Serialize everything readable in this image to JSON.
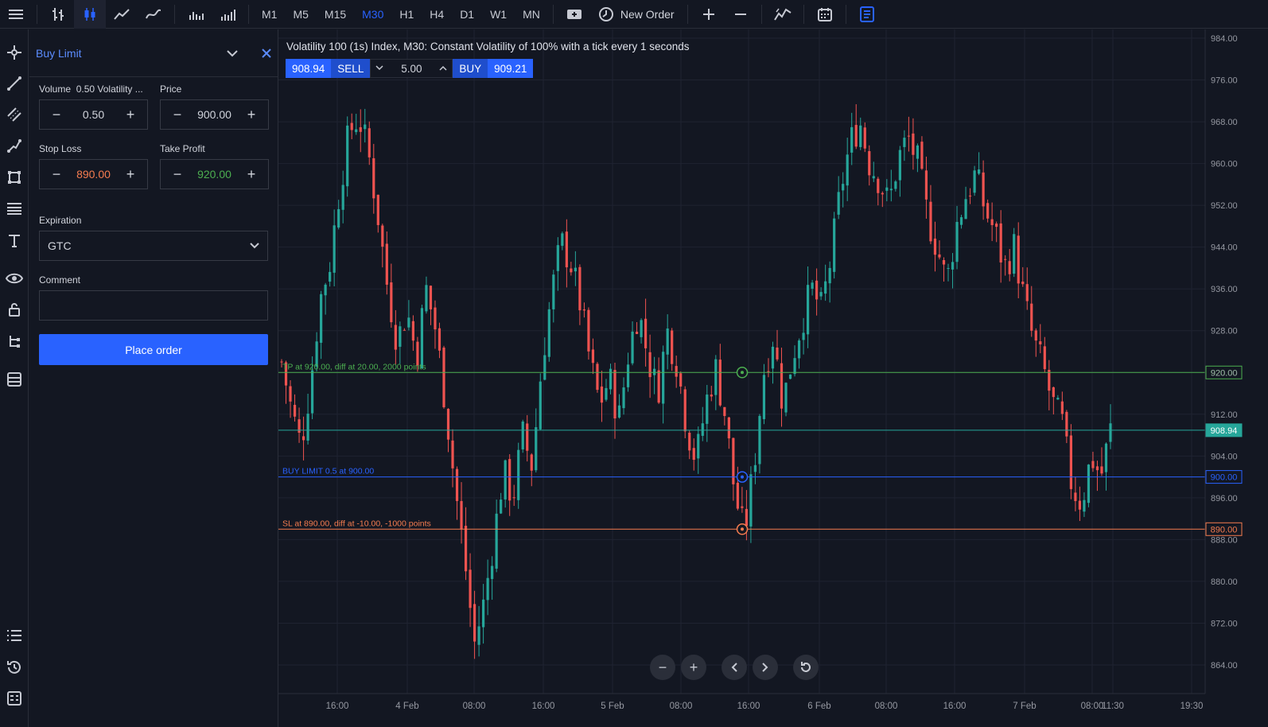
{
  "toolbar": {
    "timeframes": [
      "M1",
      "M5",
      "M15",
      "M30",
      "H1",
      "H4",
      "D1",
      "W1",
      "MN"
    ],
    "active_timeframe": "M30",
    "new_order_label": "New Order"
  },
  "order_panel": {
    "title": "Buy Limit",
    "volume_label": "Volume",
    "volume_hint": "0.50 Volatility ...",
    "volume_value": "0.50",
    "price_label": "Price",
    "price_value": "900.00",
    "stop_loss_label": "Stop Loss",
    "stop_loss_value": "890.00",
    "take_profit_label": "Take Profit",
    "take_profit_value": "920.00",
    "expiration_label": "Expiration",
    "expiration_value": "GTC",
    "comment_label": "Comment",
    "comment_value": "",
    "place_order_label": "Place order"
  },
  "chart": {
    "title": "Volatility 100 (1s) Index, M30: Constant Volatility of 100% with a tick every 1 seconds",
    "sell_price": "908.94",
    "sell_label": "SELL",
    "volume": "5.00",
    "buy_label": "BUY",
    "buy_price": "909.21",
    "tp_line_label": "TP at 920.00, diff at 20.00, 2000 points",
    "buy_limit_label": "BUY LIMIT 0.5 at 900.00",
    "sl_line_label": "SL at 890.00, diff at -10.00, -1000 points",
    "tp_price_tag": "920.00",
    "current_price_tag": "908.94",
    "buy_limit_price_tag": "900.00",
    "sl_price_tag": "890.00"
  },
  "colors": {
    "up": "#26a69a",
    "down": "#ef5350",
    "tp": "#4caf50",
    "sl": "#f57c4f",
    "buy_limit": "#2962ff",
    "current": "#26a69a"
  },
  "chart_data": {
    "type": "candlestick",
    "title": "Volatility 100 (1s) Index, M30: Constant Volatility of 100% with a tick every 1 seconds",
    "ylim": [
      860,
      985
    ],
    "y_ticks": [
      "984.00",
      "976.00",
      "968.00",
      "960.00",
      "952.00",
      "944.00",
      "936.00",
      "928.00",
      "920.00",
      "912.00",
      "904.00",
      "896.00",
      "888.00",
      "880.00",
      "872.00",
      "864.00"
    ],
    "x_ticks": [
      "16:00",
      "4 Feb",
      "08:00",
      "16:00",
      "5 Feb",
      "08:00",
      "16:00",
      "6 Feb",
      "08:00",
      "16:00",
      "7 Feb",
      "08:00",
      "11:30",
      "19:30"
    ],
    "path": [
      922,
      913,
      906,
      918,
      934,
      941,
      955,
      966,
      969,
      962,
      950,
      936,
      926,
      932,
      923,
      936,
      928,
      914,
      898,
      884,
      868,
      876,
      888,
      901,
      896,
      908,
      902,
      922,
      935,
      945,
      941,
      933,
      922,
      914,
      919,
      911,
      924,
      932,
      923,
      916,
      928,
      922,
      910,
      903,
      914,
      921,
      912,
      897,
      889,
      902,
      920,
      927,
      914,
      923,
      930,
      936,
      932,
      942,
      955,
      964,
      968,
      960,
      957,
      952,
      961,
      965,
      960,
      950,
      944,
      937,
      948,
      954,
      958,
      951,
      947,
      940,
      944,
      934,
      926,
      921,
      914,
      910,
      898,
      895,
      904,
      900,
      909
    ],
    "levels": {
      "take_profit": 920,
      "current": 908.94,
      "buy_limit": 900,
      "stop_loss": 890
    }
  }
}
